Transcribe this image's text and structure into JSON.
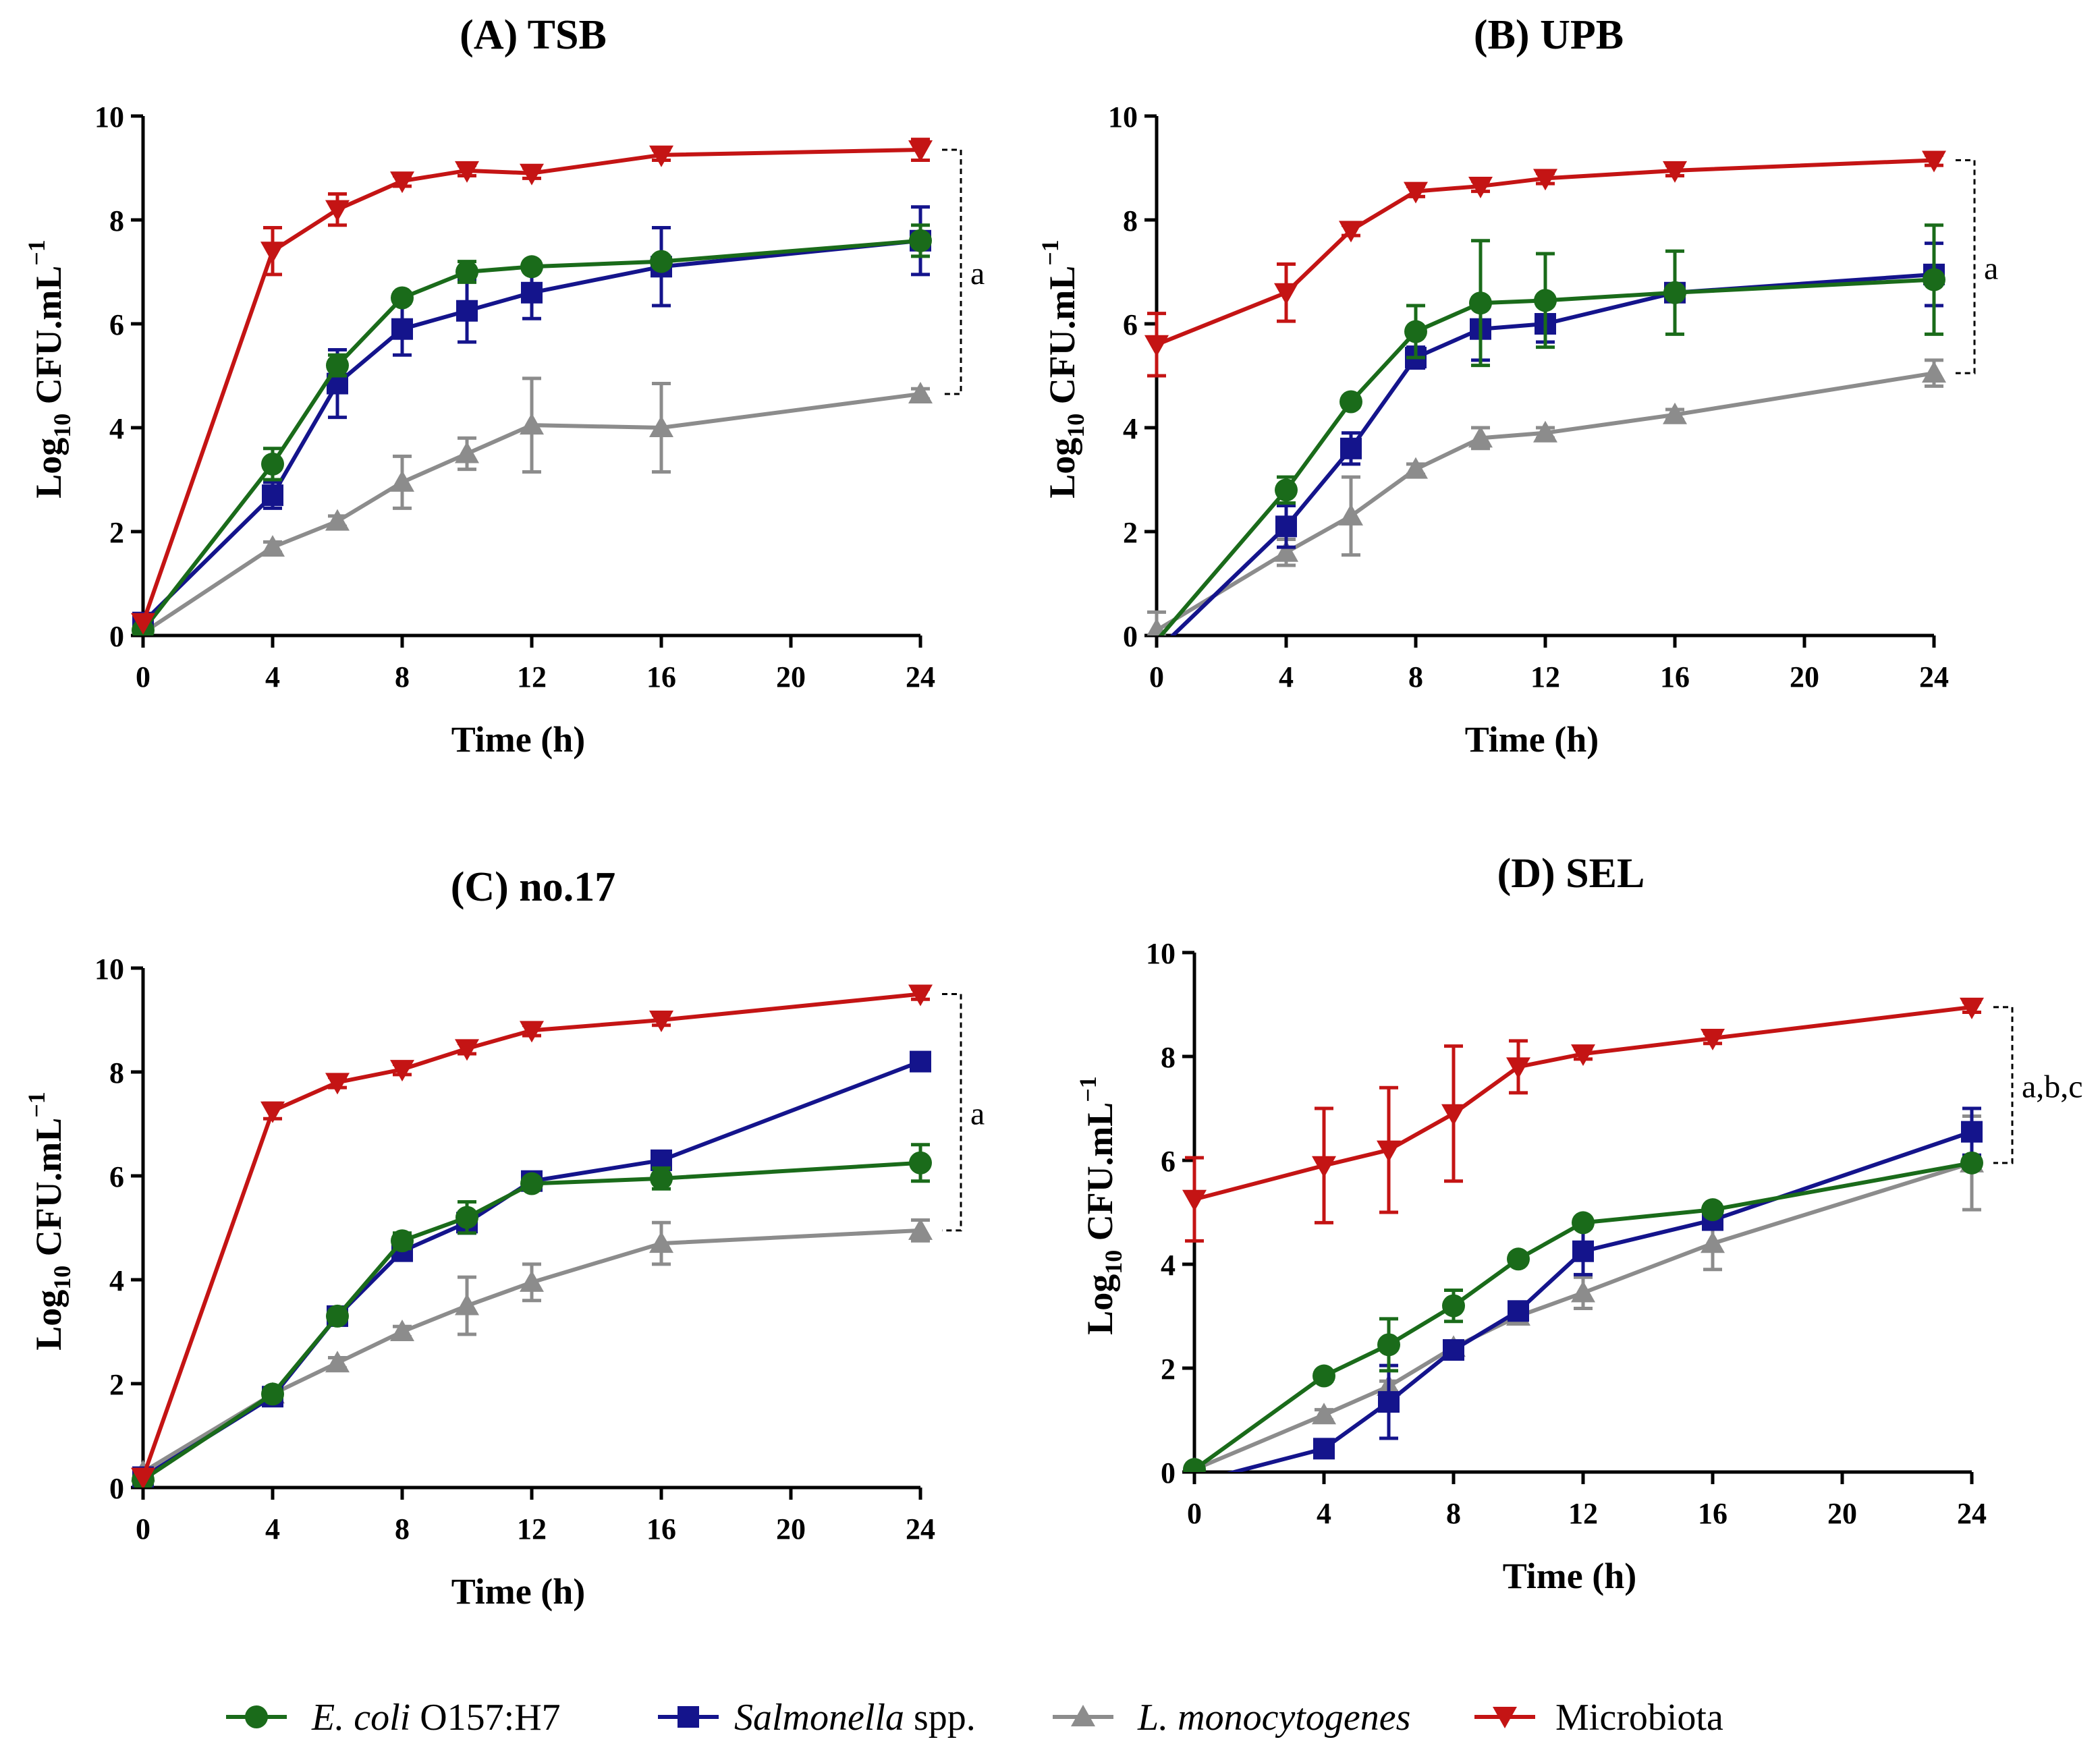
{
  "colors": {
    "ecoli": "#1a6b1a",
    "salmonella": "#14148c",
    "listeria": "#8c8c8c",
    "microbiota": "#c41414",
    "axis": "#000000"
  },
  "legend": {
    "ecoli": {
      "italic": "E. coli",
      "plain": " O157:H7",
      "marker": "circle"
    },
    "salmonella": {
      "italic": "Salmonella",
      "plain": " spp.",
      "marker": "square"
    },
    "listeria": {
      "italic": "L. monocytogenes",
      "plain": "",
      "marker": "triangle-up"
    },
    "microbiota": {
      "italic": "",
      "plain": "Microbiota",
      "marker": "triangle-down"
    }
  },
  "chart_data": [
    {
      "type": "line",
      "title": "(A) TSB",
      "xlabel": "Time (h)",
      "ylabel": {
        "base": "Log",
        "sub": "10",
        "rest": " CFU.mL",
        "sup": "−1"
      },
      "xlim": [
        0,
        24
      ],
      "ylim": [
        0,
        10
      ],
      "xticks": [
        "0",
        "4",
        "8",
        "12",
        "16",
        "20",
        "24"
      ],
      "yticks": [
        "0",
        "2",
        "4",
        "6",
        "8",
        "10"
      ],
      "x": [
        0,
        4,
        6,
        8,
        10,
        12,
        16,
        24
      ],
      "annotation": "a",
      "series": [
        {
          "key": "microbiota",
          "name": "Microbiota",
          "values": [
            0.25,
            7.4,
            8.2,
            8.75,
            8.95,
            8.9,
            9.25,
            9.35
          ],
          "errors": [
            0,
            0.45,
            0.3,
            0.1,
            0.1,
            0.1,
            0.1,
            0.2
          ]
        },
        {
          "key": "ecoli",
          "name": "E. coli O157:H7",
          "values": [
            0.1,
            3.3,
            5.2,
            6.5,
            7.0,
            7.1,
            7.2,
            7.6
          ],
          "errors": [
            0,
            0.3,
            0.2,
            0.1,
            0.2,
            0.1,
            0.1,
            0.3
          ]
        },
        {
          "key": "salmonella",
          "name": "Salmonella spp.",
          "values": [
            0.25,
            2.7,
            4.85,
            5.9,
            6.25,
            6.6,
            7.1,
            7.6
          ],
          "errors": [
            0,
            0.25,
            0.65,
            0.5,
            0.6,
            0.5,
            0.75,
            0.65
          ]
        },
        {
          "key": "listeria",
          "name": "L. monocytogenes",
          "values": [
            0.05,
            1.7,
            2.2,
            2.95,
            3.5,
            4.05,
            4.0,
            4.65
          ],
          "errors": [
            0,
            0.1,
            0.1,
            0.5,
            0.3,
            0.9,
            0.85,
            0.1
          ]
        }
      ]
    },
    {
      "type": "line",
      "title": "(B) UPB",
      "xlabel": "Time (h)",
      "ylabel": {
        "base": "Log",
        "sub": "10",
        "rest": " CFU.mL",
        "sup": "−1"
      },
      "xlim": [
        0,
        24
      ],
      "ylim": [
        0,
        10
      ],
      "xticks": [
        "0",
        "4",
        "8",
        "12",
        "16",
        "20",
        "24"
      ],
      "yticks": [
        "0",
        "2",
        "4",
        "6",
        "8",
        "10"
      ],
      "x": [
        0,
        4,
        6,
        8,
        10,
        12,
        16,
        24
      ],
      "annotation": "a",
      "series": [
        {
          "key": "microbiota",
          "name": "Microbiota",
          "values": [
            5.6,
            6.6,
            7.8,
            8.55,
            8.65,
            8.8,
            8.95,
            9.15
          ],
          "errors": [
            0.6,
            0.55,
            0.1,
            0.1,
            0.1,
            0.1,
            0.1,
            0.1
          ]
        },
        {
          "key": "ecoli",
          "name": "E. coli O157:H7",
          "values": [
            -0.1,
            2.8,
            4.5,
            5.85,
            6.4,
            6.45,
            6.6,
            6.85
          ],
          "errors": [
            0,
            0.25,
            0.1,
            0.5,
            1.2,
            0.9,
            0.8,
            1.05
          ]
        },
        {
          "key": "salmonella",
          "name": "Salmonella spp.",
          "values": [
            -0.3,
            2.1,
            3.6,
            5.35,
            5.9,
            6.0,
            6.6,
            6.95
          ],
          "errors": [
            0,
            0.4,
            0.3,
            0.2,
            0.6,
            0.35,
            0.1,
            0.6
          ]
        },
        {
          "key": "listeria",
          "name": "L. monocytogenes",
          "values": [
            0.1,
            1.6,
            2.3,
            3.2,
            3.8,
            3.9,
            4.25,
            5.05
          ],
          "errors": [
            0.35,
            0.25,
            0.75,
            0.1,
            0.2,
            0.1,
            0.1,
            0.25
          ]
        }
      ]
    },
    {
      "type": "line",
      "title": "(C) no.17",
      "xlabel": "Time (h)",
      "ylabel": {
        "base": "Log",
        "sub": "10",
        "rest": " CFU.mL",
        "sup": "−1"
      },
      "xlim": [
        0,
        24
      ],
      "ylim": [
        0,
        10
      ],
      "xticks": [
        "0",
        "4",
        "8",
        "12",
        "16",
        "20",
        "24"
      ],
      "yticks": [
        "0",
        "2",
        "4",
        "6",
        "8",
        "10"
      ],
      "x": [
        0,
        4,
        6,
        8,
        10,
        12,
        16,
        24
      ],
      "annotation": "a",
      "series": [
        {
          "key": "microbiota",
          "name": "Microbiota",
          "values": [
            0.2,
            7.25,
            7.8,
            8.05,
            8.45,
            8.8,
            9.0,
            9.5
          ],
          "errors": [
            0,
            0.15,
            0.1,
            0.1,
            0.1,
            0.1,
            0.1,
            0.1
          ]
        },
        {
          "key": "ecoli",
          "name": "E. coli O157:H7",
          "values": [
            0.15,
            1.8,
            3.3,
            4.75,
            5.2,
            5.85,
            5.95,
            6.25
          ],
          "errors": [
            0,
            0.1,
            0.1,
            0.15,
            0.3,
            0.1,
            0.2,
            0.35
          ]
        },
        {
          "key": "salmonella",
          "name": "Salmonella spp.",
          "values": [
            0.2,
            1.75,
            3.3,
            4.55,
            5.1,
            5.9,
            6.3,
            8.2
          ],
          "errors": [
            0,
            0.1,
            0.1,
            0.1,
            0.2,
            0.1,
            0.1,
            0.1
          ]
        },
        {
          "key": "listeria",
          "name": "L. monocytogenes",
          "values": [
            0.3,
            1.8,
            2.4,
            3.0,
            3.5,
            3.95,
            4.7,
            4.95
          ],
          "errors": [
            0,
            0.1,
            0.1,
            0.1,
            0.55,
            0.35,
            0.4,
            0.2
          ]
        }
      ]
    },
    {
      "type": "line",
      "title": "(D) SEL",
      "xlabel": "Time (h)",
      "ylabel": {
        "base": "Log",
        "sub": "10",
        "rest": " CFU.mL",
        "sup": "−1"
      },
      "xlim": [
        0,
        24
      ],
      "ylim": [
        0,
        10
      ],
      "xticks": [
        "0",
        "4",
        "8",
        "12",
        "16",
        "20",
        "24"
      ],
      "yticks": [
        "0",
        "2",
        "4",
        "6",
        "8",
        "10"
      ],
      "x": [
        0,
        4,
        6,
        8,
        10,
        12,
        16,
        24
      ],
      "annotation": "a,b,c",
      "series": [
        {
          "key": "microbiota",
          "name": "Microbiota",
          "values": [
            5.25,
            5.9,
            6.2,
            6.9,
            7.8,
            8.05,
            8.35,
            8.95
          ],
          "errors": [
            0.8,
            1.1,
            1.2,
            1.3,
            0.5,
            0.1,
            0.1,
            0.1
          ]
        },
        {
          "key": "ecoli",
          "name": "E. coli O157:H7",
          "values": [
            0.05,
            1.85,
            2.45,
            3.2,
            4.1,
            4.8,
            5.05,
            5.95
          ],
          "errors": [
            0,
            0.1,
            0.5,
            0.3,
            0.1,
            0.1,
            0.1,
            0.1
          ]
        },
        {
          "key": "salmonella",
          "name": "Salmonella spp.",
          "values": [
            -0.2,
            0.45,
            1.35,
            2.35,
            3.1,
            4.25,
            4.85,
            6.55
          ],
          "errors": [
            0,
            0.1,
            0.7,
            0.1,
            0.1,
            0.45,
            0.1,
            0.45
          ]
        },
        {
          "key": "listeria",
          "name": "L. monocytogenes",
          "values": [
            0.05,
            1.1,
            1.65,
            2.4,
            3.0,
            3.45,
            4.4,
            5.95
          ],
          "errors": [
            0,
            0.1,
            0.1,
            0.1,
            0.15,
            0.3,
            0.5,
            0.9
          ]
        }
      ]
    }
  ]
}
